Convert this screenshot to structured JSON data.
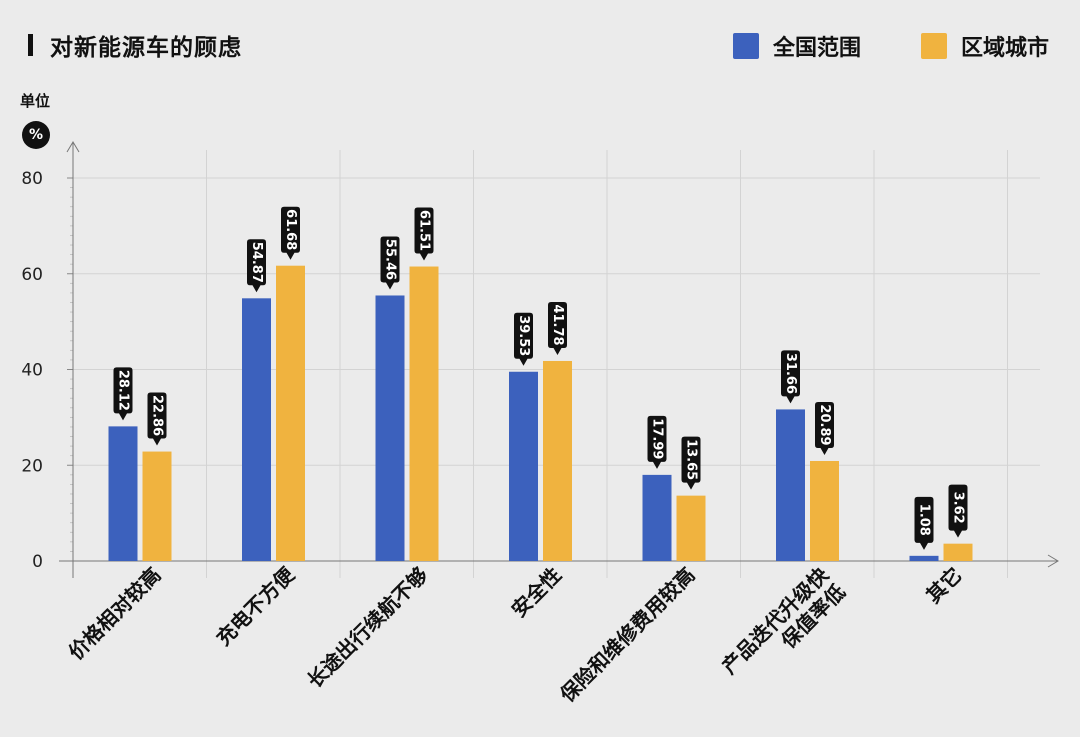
{
  "title": "对新能源车的顾虑",
  "unit": {
    "label": "单位",
    "symbol": "%"
  },
  "legend": [
    {
      "name": "全国范围",
      "color": "#3c61bd"
    },
    {
      "name": "区域城市",
      "color": "#f0b33f"
    }
  ],
  "chart_data": {
    "type": "bar",
    "categories": [
      [
        "价格相对较高"
      ],
      [
        "充电不方便"
      ],
      [
        "长途出行续航不够"
      ],
      [
        "安全性"
      ],
      [
        "保险和维修费用较高"
      ],
      [
        "产品迭代升级快",
        "保值率低"
      ],
      [
        "其它"
      ]
    ],
    "series": [
      {
        "name": "全国范围",
        "color": "#3c61bd",
        "values": [
          28.12,
          54.87,
          55.46,
          39.53,
          17.99,
          31.66,
          1.08
        ]
      },
      {
        "name": "区域城市",
        "color": "#f0b33f",
        "values": [
          22.86,
          61.68,
          61.51,
          41.78,
          13.65,
          20.89,
          3.62
        ]
      }
    ],
    "y_ticks": [
      0,
      20,
      40,
      60,
      80
    ],
    "ylim": [
      0,
      80
    ],
    "grid": true,
    "legend_position": "top-right",
    "data_labels": true
  }
}
